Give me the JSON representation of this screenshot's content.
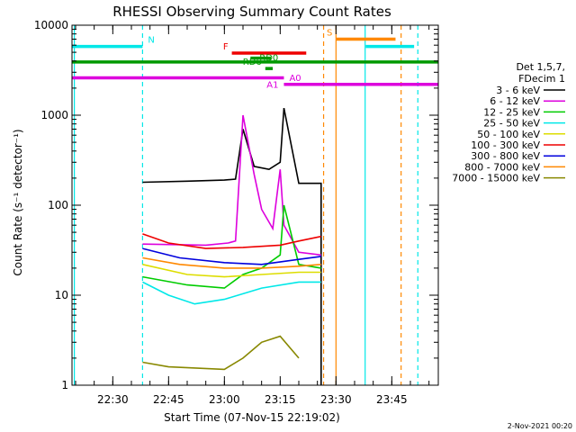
{
  "chart_data": {
    "type": "line",
    "title": "RHESSI Observing Summary Count Rates",
    "xlabel": "Start Time (07-Nov-15 22:19:02)",
    "ylabel": "Count Rate (s⁻¹ detector⁻¹)",
    "yscale": "log",
    "ylim": [
      1,
      10000
    ],
    "xlim": [
      "22:19:02",
      "23:57:30"
    ],
    "x_ticks": [
      "22:30",
      "22:45",
      "23:00",
      "23:15",
      "23:30",
      "23:45"
    ],
    "y_ticks": [
      "1",
      "10",
      "100",
      "1000",
      "10000"
    ],
    "grid": false,
    "legend_position": "right",
    "legend_header": [
      "Det 1,5,7,",
      "FDecim 1"
    ],
    "timestamp": "2-Nov-2021 00:20",
    "series": [
      {
        "name": "3 - 6 keV",
        "color": "#000000",
        "x": [
          "22:38",
          "22:50",
          "23:00",
          "23:03",
          "23:05",
          "23:08",
          "23:12",
          "23:15",
          "23:16",
          "23:20",
          "23:26",
          "23:26"
        ],
        "values": [
          180,
          185,
          190,
          195,
          700,
          270,
          250,
          300,
          1200,
          175,
          175,
          1
        ]
      },
      {
        "name": "6 - 12 keV",
        "color": "#dd00dd",
        "x": [
          "22:38",
          "22:55",
          "23:01",
          "23:03",
          "23:05",
          "23:08",
          "23:10",
          "23:13",
          "23:15",
          "23:16",
          "23:20",
          "23:26"
        ],
        "values": [
          37,
          36,
          38,
          40,
          1000,
          220,
          90,
          55,
          250,
          60,
          30,
          28
        ]
      },
      {
        "name": "12 - 25 keV",
        "color": "#00cc00",
        "x": [
          "22:38",
          "22:50",
          "23:00",
          "23:05",
          "23:10",
          "23:15",
          "23:16",
          "23:20",
          "23:26"
        ],
        "values": [
          16,
          13,
          12,
          17,
          20,
          28,
          100,
          22,
          20
        ]
      },
      {
        "name": "25 - 50 keV",
        "color": "#00e8e8",
        "x": [
          "22:38",
          "22:45",
          "22:52",
          "23:00",
          "23:10",
          "23:20",
          "23:26"
        ],
        "values": [
          14,
          10,
          8,
          9,
          12,
          14,
          14
        ]
      },
      {
        "name": "50 - 100 keV",
        "color": "#dddd00",
        "x": [
          "22:38",
          "22:50",
          "23:00",
          "23:10",
          "23:20",
          "23:26"
        ],
        "values": [
          22,
          17,
          16,
          17,
          18,
          18
        ]
      },
      {
        "name": "100 - 300 keV",
        "color": "#ee0000",
        "x": [
          "22:38",
          "22:45",
          "22:55",
          "23:05",
          "23:15",
          "23:20",
          "23:26"
        ],
        "values": [
          48,
          38,
          33,
          34,
          36,
          40,
          45
        ]
      },
      {
        "name": "300 - 800 keV",
        "color": "#0000dd",
        "x": [
          "22:38",
          "22:48",
          "23:00",
          "23:10",
          "23:20",
          "23:26"
        ],
        "values": [
          33,
          26,
          23,
          22,
          25,
          27
        ]
      },
      {
        "name": "800 - 7000 keV",
        "color": "#ff8800",
        "x": [
          "22:38",
          "22:48",
          "23:00",
          "23:10",
          "23:20",
          "23:26"
        ],
        "values": [
          26,
          22,
          20,
          20,
          21,
          22
        ]
      },
      {
        "name": "7000 - 15000 keV",
        "color": "#888800",
        "x": [
          "22:38",
          "22:45",
          "23:00",
          "23:05",
          "23:10",
          "23:15",
          "23:20"
        ],
        "values": [
          1.8,
          1.6,
          1.5,
          2,
          3,
          3.5,
          2
        ]
      }
    ],
    "flags": [
      {
        "label": "N",
        "color": "#00e8e8",
        "x_start": "22:19:02",
        "x_end": "22:38:00",
        "level": 5800
      },
      {
        "label": "",
        "color": "#00e8e8",
        "x_start": "23:38:00",
        "x_end": "23:51:00",
        "level": 5800
      },
      {
        "label": "S",
        "color": "#ff8800",
        "x_start": "23:30:00",
        "x_end": "23:46:00",
        "level": 7000
      },
      {
        "label": "F",
        "color": "#ee0000",
        "x_start": "23:02:00",
        "x_end": "23:22:00",
        "level": 4900
      },
      {
        "label": "RD0",
        "color": "#009900",
        "x_start": "23:07:00",
        "x_end": "23:12:30",
        "level": 4300
      },
      {
        "label": "",
        "color": "#009900",
        "x_start": "22:19:02",
        "x_end": "23:57:30",
        "level": 3900
      },
      {
        "label": "RD6",
        "color": "#009900",
        "x_start": "23:11:00",
        "x_end": "23:13:00",
        "level": 3300
      },
      {
        "label": "A1",
        "color": "#dd00dd",
        "x_start": "22:19:02",
        "x_end": "23:16:00",
        "level": 2600
      },
      {
        "label": "A0",
        "color": "#dd00dd",
        "x_start": "23:16:00",
        "x_end": "23:57:30",
        "level": 2200
      }
    ],
    "vlines": [
      {
        "x": "22:19:40",
        "color": "#00e8e8",
        "style": "solid"
      },
      {
        "x": "22:38:00",
        "color": "#00e8e8",
        "style": "dashed"
      },
      {
        "x": "23:26:40",
        "color": "#ff8800",
        "style": "dashed"
      },
      {
        "x": "23:30:00",
        "color": "#ff8800",
        "style": "solid"
      },
      {
        "x": "23:37:50",
        "color": "#00e8e8",
        "style": "solid"
      },
      {
        "x": "23:47:30",
        "color": "#ff8800",
        "style": "dashed"
      },
      {
        "x": "23:52:00",
        "color": "#00e8e8",
        "style": "dashed"
      }
    ]
  }
}
